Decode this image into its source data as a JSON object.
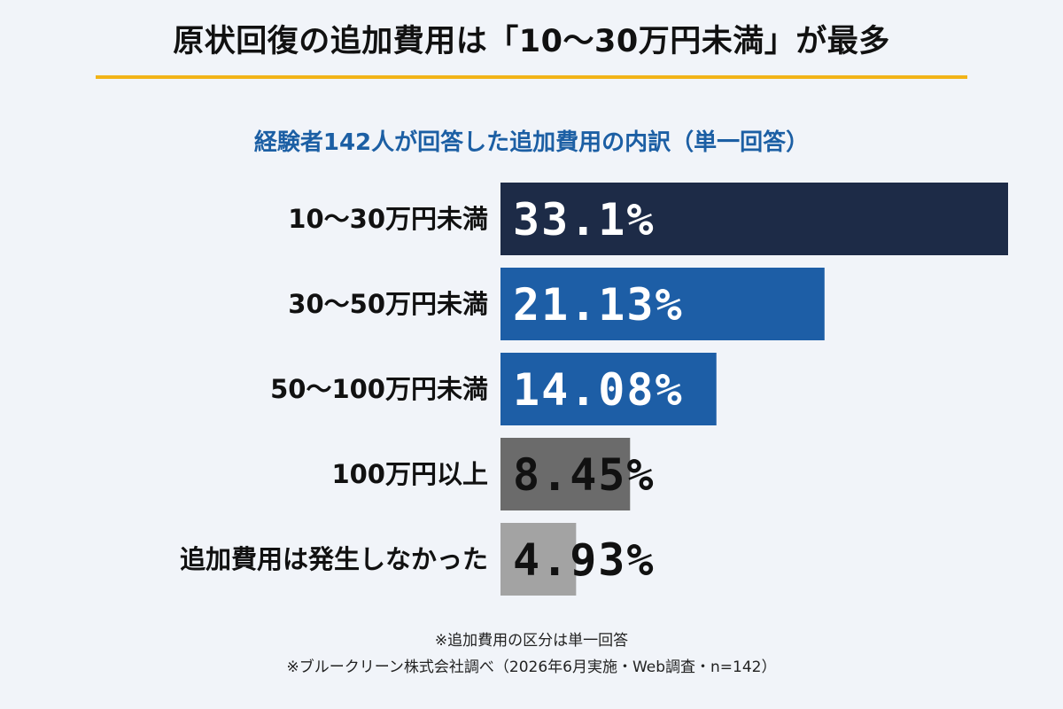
{
  "header": {
    "title": "原状回復の追加費用は「10〜30万円未満」が最多",
    "accent_color": "#f2b418"
  },
  "chart_data": {
    "type": "bar",
    "orientation": "horizontal",
    "title": "経験者142人が回答した追加費用の内訳（単一回答）",
    "categories": [
      "10〜30万円未満",
      "30〜50万円未満",
      "50〜100万円未満",
      "100万円以上",
      "追加費用は発生しなかった"
    ],
    "values": [
      33.1,
      21.13,
      14.08,
      8.45,
      4.93
    ],
    "value_labels": [
      "33.1%",
      "21.13%",
      "14.08%",
      "8.45%",
      "4.93%"
    ],
    "colors": [
      "#1d2b47",
      "#1d5ea6",
      "#1d5ea6",
      "#6b6b6b",
      "#a3a3a3"
    ],
    "label_colors": [
      "#ffffff",
      "#ffffff",
      "#ffffff",
      "#111111",
      "#111111"
    ],
    "xlim": [
      0,
      33.1
    ],
    "grid": false,
    "legend": "none"
  },
  "footnotes": {
    "note1": "※追加費用の区分は単一回答",
    "note2": "※ブルークリーン株式会社調べ（2026年6月実施・Web調査・n=142）"
  }
}
